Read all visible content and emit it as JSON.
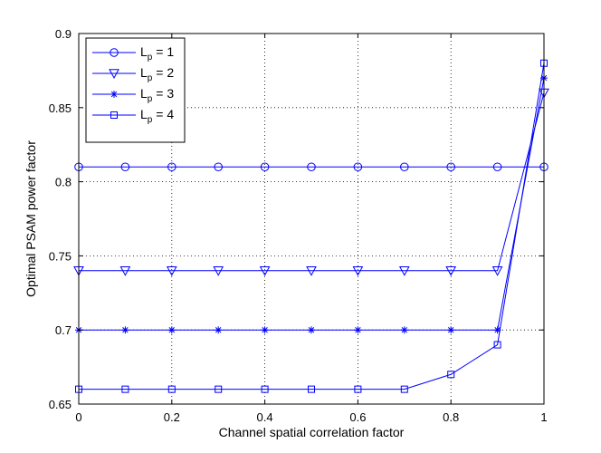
{
  "chart_data": {
    "type": "line",
    "title": "",
    "xlabel": "Channel spatial correlation factor",
    "ylabel": "Optimal PSAM power factor",
    "xlim": [
      0,
      1
    ],
    "ylim": [
      0.65,
      0.9
    ],
    "x_ticks": [
      0,
      0.2,
      0.4,
      0.6,
      0.8,
      1
    ],
    "x_tick_labels": [
      "0",
      "0.2",
      "0.4",
      "0.6",
      "0.8",
      "1"
    ],
    "y_ticks": [
      0.65,
      0.7,
      0.75,
      0.8,
      0.85,
      0.9
    ],
    "y_tick_labels": [
      "0.65",
      "0.7",
      "0.75",
      "0.8",
      "0.85",
      "0.9"
    ],
    "grid": true,
    "legend_position": "top-left",
    "line_color": "#0000ff",
    "x": [
      0,
      0.1,
      0.2,
      0.3,
      0.4,
      0.5,
      0.6,
      0.7,
      0.8,
      0.9,
      1
    ],
    "series": [
      {
        "name": "L_p = 1",
        "legend_main": "L",
        "legend_sub": "p",
        "legend_rest": " = 1",
        "marker": "circle",
        "values": [
          0.81,
          0.81,
          0.81,
          0.81,
          0.81,
          0.81,
          0.81,
          0.81,
          0.81,
          0.81,
          0.81
        ]
      },
      {
        "name": "L_p = 2",
        "legend_main": "L",
        "legend_sub": "p",
        "legend_rest": " = 2",
        "marker": "triangle-down",
        "values": [
          0.74,
          0.74,
          0.74,
          0.74,
          0.74,
          0.74,
          0.74,
          0.74,
          0.74,
          0.74,
          0.86
        ]
      },
      {
        "name": "L_p = 3",
        "legend_main": "L",
        "legend_sub": "p",
        "legend_rest": " = 3",
        "marker": "star",
        "values": [
          0.7,
          0.7,
          0.7,
          0.7,
          0.7,
          0.7,
          0.7,
          0.7,
          0.7,
          0.7,
          0.87
        ]
      },
      {
        "name": "L_p = 4",
        "legend_main": "L",
        "legend_sub": "p",
        "legend_rest": " = 4",
        "marker": "square",
        "values": [
          0.66,
          0.66,
          0.66,
          0.66,
          0.66,
          0.66,
          0.66,
          0.66,
          0.67,
          0.69,
          0.88
        ]
      }
    ]
  }
}
